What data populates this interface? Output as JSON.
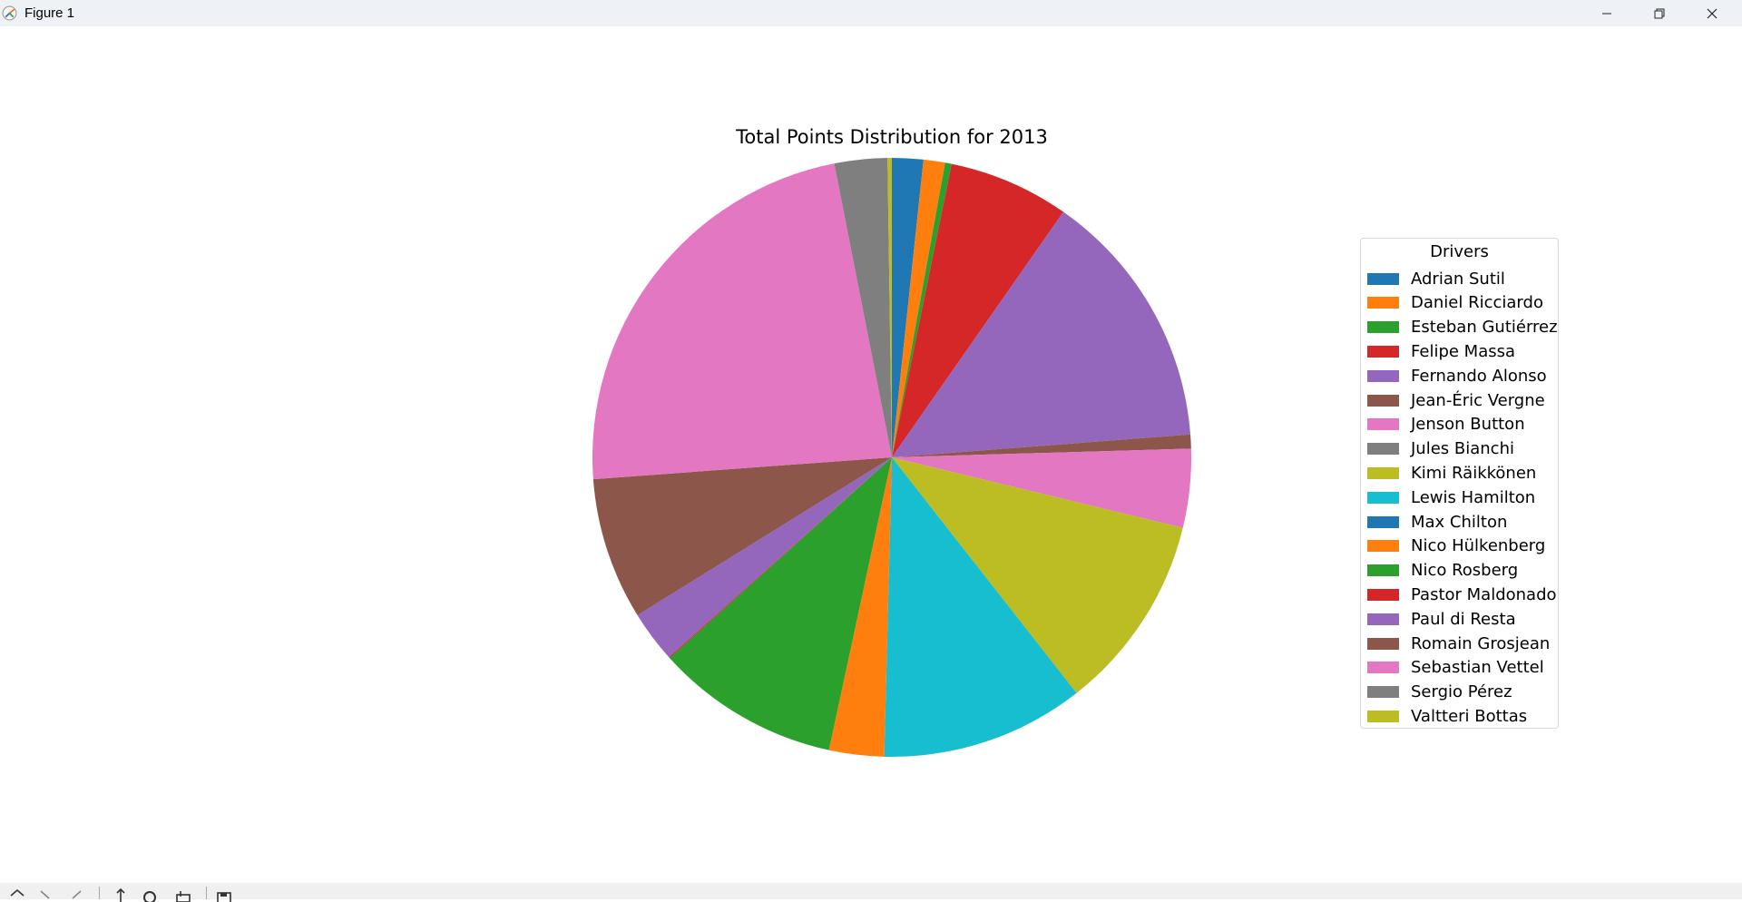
{
  "window": {
    "title": "Figure 1",
    "icons": [
      "app-icon",
      "minimize-icon",
      "maximize-icon",
      "close-icon"
    ]
  },
  "toolbar": {
    "icons": [
      "home-icon",
      "back-icon",
      "forward-icon",
      "pan-icon",
      "zoom-icon",
      "configure-subplots-icon",
      "save-icon"
    ]
  },
  "chart_data": {
    "type": "pie",
    "title": "Total Points Distribution for 2013",
    "legend_title": "Drivers",
    "legend_placement": "right",
    "start_angle": 90,
    "direction": "clockwise",
    "slices": [
      {
        "label": "Adrian Sutil",
        "value": 29,
        "color": "#1f77b4"
      },
      {
        "label": "Daniel Ricciardo",
        "value": 20,
        "color": "#ff7f0e"
      },
      {
        "label": "Esteban Gutiérrez",
        "value": 6,
        "color": "#2ca02c"
      },
      {
        "label": "Felipe Massa",
        "value": 112,
        "color": "#d62728"
      },
      {
        "label": "Fernando Alonso",
        "value": 242,
        "color": "#9467bd"
      },
      {
        "label": "Jean-Éric Vergne",
        "value": 13,
        "color": "#8c564b"
      },
      {
        "label": "Jenson Button",
        "value": 73,
        "color": "#e377c2"
      },
      {
        "label": "Jules Bianchi",
        "value": 0,
        "color": "#7f7f7f"
      },
      {
        "label": "Kimi Räikkönen",
        "value": 183,
        "color": "#bcbd22"
      },
      {
        "label": "Lewis Hamilton",
        "value": 189,
        "color": "#17becf"
      },
      {
        "label": "Max Chilton",
        "value": 0,
        "color": "#1f77b4"
      },
      {
        "label": "Nico Hülkenberg",
        "value": 51,
        "color": "#ff7f0e"
      },
      {
        "label": "Nico Rosberg",
        "value": 171,
        "color": "#2ca02c"
      },
      {
        "label": "Pastor Maldonado",
        "value": 1,
        "color": "#d62728"
      },
      {
        "label": "Paul di Resta",
        "value": 48,
        "color": "#9467bd"
      },
      {
        "label": "Romain Grosjean",
        "value": 132,
        "color": "#8c564b"
      },
      {
        "label": "Sebastian Vettel",
        "value": 397,
        "color": "#e377c2"
      },
      {
        "label": "Sergio Pérez",
        "value": 49,
        "color": "#7f7f7f"
      },
      {
        "label": "Valtteri Bottas",
        "value": 4,
        "color": "#bcbd22"
      }
    ]
  }
}
